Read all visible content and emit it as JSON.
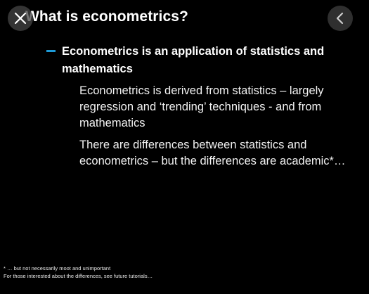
{
  "slide": {
    "title": "What is econometrics?",
    "bullet": "Econometrics is an application of statistics and mathematics",
    "sub_items": [
      "Econometrics is derived from statistics – largely regression and ‘trending’ techniques  - and from mathematics",
      "There are differences between statistics and econometrics – but the differences are academic*…"
    ],
    "footnotes": [
      "* … but not necessarily moot and unimportant",
      "For those interested about the differences, see future tutorials…"
    ]
  },
  "controls": {
    "close_icon": "close-icon",
    "back_icon": "chevron-left-icon"
  },
  "colors": {
    "background": "#000000",
    "text": "#ffffff",
    "bullet_dash": "#1e9bd7"
  }
}
